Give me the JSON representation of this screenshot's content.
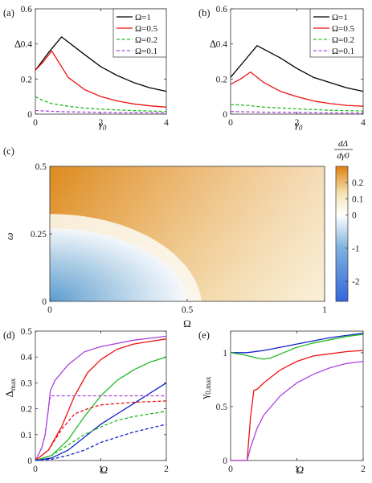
{
  "chart_data": [
    {
      "id": "a",
      "panel_label": "(a)",
      "type": "line",
      "xlabel": "γ0",
      "ylabel": "Δ",
      "xlim": [
        0,
        4
      ],
      "ylim": [
        0,
        0.6
      ],
      "xticks": [
        0,
        2,
        4
      ],
      "yticks": [
        0,
        0.2,
        0.4,
        0.6
      ],
      "xtick_labels": [
        "0",
        "2",
        "4"
      ],
      "ytick_labels": [
        "0",
        "0.2",
        "0.4",
        "0.6"
      ],
      "legend_position": "top-right",
      "series": [
        {
          "name": "Ω=1",
          "color": "#000000",
          "dash": "solid",
          "x": [
            0,
            0.4,
            0.8,
            1.5,
            2.0,
            2.5,
            3.0,
            3.5,
            4.0
          ],
          "y": [
            0.25,
            0.35,
            0.44,
            0.34,
            0.27,
            0.22,
            0.18,
            0.15,
            0.13
          ]
        },
        {
          "name": "Ω=0.5",
          "color": "#ee1111",
          "dash": "solid",
          "x": [
            0,
            0.25,
            0.5,
            1.0,
            1.5,
            2.0,
            2.5,
            3.0,
            3.5,
            4.0
          ],
          "y": [
            0.25,
            0.3,
            0.36,
            0.21,
            0.14,
            0.1,
            0.075,
            0.058,
            0.047,
            0.04
          ]
        },
        {
          "name": "Ω=0.2",
          "color": "#22bb22",
          "dash": "dashed",
          "x": [
            0,
            0.2,
            0.5,
            1.0,
            1.5,
            2.0,
            3.0,
            4.0
          ],
          "y": [
            0.1,
            0.08,
            0.06,
            0.045,
            0.035,
            0.028,
            0.02,
            0.015
          ]
        },
        {
          "name": "Ω=0.1",
          "color": "#aa44dd",
          "dash": "dashed",
          "x": [
            0,
            0.5,
            1.0,
            2.0,
            3.0,
            4.0
          ],
          "y": [
            0.02,
            0.016,
            0.013,
            0.01,
            0.008,
            0.007
          ]
        }
      ]
    },
    {
      "id": "b",
      "panel_label": "(b)",
      "type": "line",
      "xlabel": "γ0",
      "ylabel": "Δ",
      "xlim": [
        0,
        4
      ],
      "ylim": [
        0,
        0.6
      ],
      "xticks": [
        0,
        2,
        4
      ],
      "yticks": [
        0,
        0.2,
        0.4,
        0.6
      ],
      "xtick_labels": [
        "0",
        "2",
        "4"
      ],
      "ytick_labels": [
        "0",
        "0.2",
        "0.4",
        "0.6"
      ],
      "legend_position": "top-right",
      "series": [
        {
          "name": "Ω=1",
          "color": "#000000",
          "dash": "solid",
          "x": [
            0,
            0.4,
            0.8,
            1.5,
            2.0,
            2.5,
            3.0,
            3.5,
            4.0
          ],
          "y": [
            0.21,
            0.3,
            0.39,
            0.32,
            0.26,
            0.21,
            0.18,
            0.15,
            0.13
          ]
        },
        {
          "name": "Ω=0.5",
          "color": "#ee1111",
          "dash": "solid",
          "x": [
            0,
            0.3,
            0.6,
            1.0,
            1.5,
            2.0,
            2.5,
            3.0,
            3.5,
            4.0
          ],
          "y": [
            0.17,
            0.2,
            0.24,
            0.18,
            0.13,
            0.1,
            0.075,
            0.06,
            0.05,
            0.045
          ]
        },
        {
          "name": "Ω=0.2",
          "color": "#22bb22",
          "dash": "dashed",
          "x": [
            0,
            0.5,
            1.0,
            2.0,
            3.0,
            4.0
          ],
          "y": [
            0.055,
            0.05,
            0.04,
            0.03,
            0.022,
            0.018
          ]
        },
        {
          "name": "Ω=0.1",
          "color": "#aa44dd",
          "dash": "dashed",
          "x": [
            0,
            0.5,
            1.0,
            2.0,
            3.0,
            4.0
          ],
          "y": [
            0.015,
            0.013,
            0.011,
            0.009,
            0.007,
            0.006
          ]
        }
      ]
    },
    {
      "id": "c",
      "panel_label": "(c)",
      "type": "heatmap",
      "xlabel": "Ω",
      "ylabel": "ω",
      "colorbar_label_numerator": "dΔ",
      "colorbar_label_denominator": "dγ0",
      "xlim": [
        0,
        1
      ],
      "ylim": [
        0,
        0.5
      ],
      "xticks": [
        0,
        0.5,
        1
      ],
      "yticks": [
        0,
        0.25,
        0.5
      ],
      "xtick_labels": [
        "0",
        "0.5",
        "1"
      ],
      "ytick_labels": [
        "0",
        "0.25",
        "0.5"
      ],
      "colorbar_range": [
        -2.6,
        0.3
      ],
      "colorbar_ticks": [
        0.2,
        0.1,
        0,
        -1,
        -2
      ],
      "colorbar_tick_labels": [
        "0.2",
        "0.1",
        "0",
        "-1",
        "-2"
      ],
      "colorbar_colors": [
        "#3366dd",
        "#7fb3dd",
        "#ffffff",
        "#f3e3b3",
        "#e08010"
      ],
      "boundary": "negative region bounded by quarter-ellipse from (Ω=0, ω=0.27) to (Ω=0.5, ω=0)"
    },
    {
      "id": "d",
      "panel_label": "(d)",
      "type": "line",
      "xlabel": "Ω",
      "ylabel": "Δmax",
      "xlim": [
        0,
        2
      ],
      "ylim": [
        0,
        0.5
      ],
      "xticks": [
        0,
        1,
        2
      ],
      "yticks": [
        0,
        0.1,
        0.2,
        0.3,
        0.4,
        0.5
      ],
      "xtick_labels": [
        "0",
        "1",
        "2"
      ],
      "ytick_labels": [
        "0",
        "0.1",
        "0.2",
        "0.3",
        "0.4",
        "0.5"
      ],
      "series": [
        {
          "color": "#aa44dd",
          "dash": "solid",
          "x": [
            0,
            0.1,
            0.15,
            0.2,
            0.23,
            0.3,
            0.5,
            0.75,
            1.0,
            1.5,
            2.0
          ],
          "y": [
            0,
            0.05,
            0.1,
            0.2,
            0.27,
            0.31,
            0.37,
            0.42,
            0.44,
            0.465,
            0.48
          ]
        },
        {
          "color": "#ee1111",
          "dash": "solid",
          "x": [
            0,
            0.2,
            0.4,
            0.6,
            0.8,
            1.0,
            1.25,
            1.5,
            1.75,
            2.0
          ],
          "y": [
            0,
            0.04,
            0.13,
            0.25,
            0.34,
            0.39,
            0.43,
            0.45,
            0.46,
            0.47
          ]
        },
        {
          "color": "#22bb22",
          "dash": "solid",
          "x": [
            0,
            0.25,
            0.5,
            0.75,
            1.0,
            1.25,
            1.5,
            1.75,
            2.0
          ],
          "y": [
            0,
            0.02,
            0.08,
            0.17,
            0.25,
            0.31,
            0.35,
            0.38,
            0.4
          ]
        },
        {
          "color": "#1122cc",
          "dash": "solid",
          "x": [
            0,
            0.25,
            0.5,
            0.75,
            1.0,
            1.25,
            1.5,
            1.75,
            2.0
          ],
          "y": [
            0,
            0.01,
            0.04,
            0.09,
            0.14,
            0.18,
            0.22,
            0.26,
            0.3
          ]
        },
        {
          "color": "#aa44dd",
          "dash": "dashed",
          "x": [
            0,
            0.1,
            0.15,
            0.2,
            0.23,
            0.3,
            1.0,
            2.0
          ],
          "y": [
            0,
            0.05,
            0.1,
            0.2,
            0.25,
            0.25,
            0.25,
            0.25
          ]
        },
        {
          "color": "#ee1111",
          "dash": "dashed",
          "x": [
            0,
            0.2,
            0.4,
            0.6,
            0.8,
            1.0,
            1.5,
            2.0
          ],
          "y": [
            0,
            0.04,
            0.12,
            0.18,
            0.2,
            0.215,
            0.225,
            0.23
          ]
        },
        {
          "color": "#22bb22",
          "dash": "dashed",
          "x": [
            0,
            0.25,
            0.5,
            0.75,
            1.0,
            1.25,
            1.5,
            1.75,
            2.0
          ],
          "y": [
            0,
            0.02,
            0.06,
            0.1,
            0.13,
            0.155,
            0.17,
            0.18,
            0.19
          ]
        },
        {
          "color": "#1122cc",
          "dash": "dashed",
          "x": [
            0,
            0.25,
            0.5,
            0.75,
            1.0,
            1.25,
            1.5,
            1.75,
            2.0
          ],
          "y": [
            0,
            0.005,
            0.02,
            0.04,
            0.07,
            0.09,
            0.11,
            0.125,
            0.14
          ]
        }
      ]
    },
    {
      "id": "e",
      "panel_label": "(e)",
      "type": "line",
      "xlabel": "Ω",
      "ylabel": "γ0,max",
      "xlim": [
        0,
        2
      ],
      "ylim": [
        0,
        1.2
      ],
      "xticks": [
        0,
        1,
        2
      ],
      "yticks": [
        0,
        0.5,
        1
      ],
      "xtick_labels": [
        "0",
        "1",
        "2"
      ],
      "ytick_labels": [
        "0",
        "0.5",
        "1"
      ],
      "series": [
        {
          "color": "#1122cc",
          "dash": "solid",
          "x": [
            0,
            0.25,
            0.5,
            0.75,
            1.0,
            1.25,
            1.5,
            1.75,
            2.0
          ],
          "y": [
            1.0,
            1.0,
            1.02,
            1.05,
            1.08,
            1.11,
            1.14,
            1.16,
            1.18
          ]
        },
        {
          "color": "#22bb22",
          "dash": "solid",
          "x": [
            0,
            0.2,
            0.4,
            0.5,
            0.6,
            0.8,
            1.0,
            1.25,
            1.5,
            1.75,
            2.0
          ],
          "y": [
            1.0,
            0.98,
            0.95,
            0.94,
            0.95,
            1.0,
            1.05,
            1.09,
            1.12,
            1.15,
            1.17
          ]
        },
        {
          "color": "#ee1111",
          "dash": "solid",
          "x": [
            0,
            0.25,
            0.3,
            0.35,
            0.4,
            0.5,
            0.75,
            1.0,
            1.25,
            1.5,
            1.75,
            2.0
          ],
          "y": [
            0,
            0,
            0.4,
            0.65,
            0.66,
            0.72,
            0.84,
            0.92,
            0.97,
            0.99,
            1.01,
            1.02
          ]
        },
        {
          "color": "#aa44dd",
          "dash": "solid",
          "x": [
            0,
            0.25,
            0.3,
            0.4,
            0.5,
            0.75,
            1.0,
            1.25,
            1.5,
            1.75,
            2.0
          ],
          "y": [
            0,
            0,
            0.12,
            0.3,
            0.42,
            0.6,
            0.72,
            0.8,
            0.86,
            0.9,
            0.92
          ]
        }
      ]
    }
  ]
}
